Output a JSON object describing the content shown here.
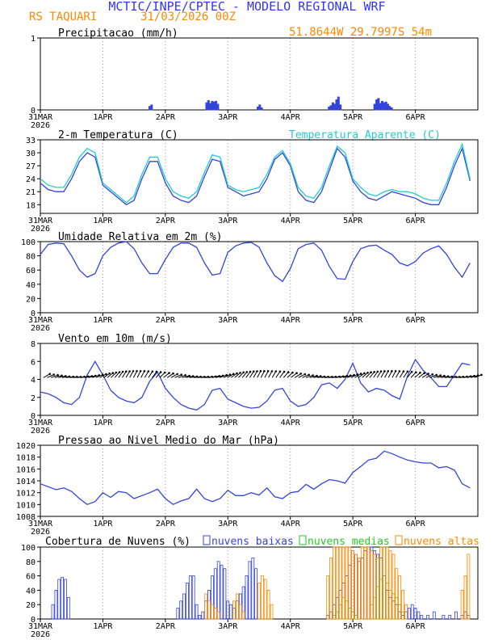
{
  "header": {
    "title": "MCTIC/INPE/CPTEC - MODELO REGIONAL WRF",
    "station": "RS TAQUARI",
    "run": "31/03/2026 00Z",
    "coords": "51.8644W 29.7997S 54m",
    "title_color": "#3333ff",
    "station_color": "#ff8800"
  },
  "x_axis": {
    "labels": [
      "31MAR",
      "1APR",
      "2APR",
      "3APR",
      "4APR",
      "5APR",
      "6APR"
    ],
    "year": "2026"
  },
  "colors": {
    "blue": "#3344dd",
    "cyan": "#22cccc",
    "green": "#22cc22",
    "orange": "#ff8800",
    "barb": "#000000"
  },
  "chart_data": [
    {
      "type": "bar",
      "title": "Precipitacao (mm/h)",
      "ylim": [
        0,
        1
      ],
      "yticks": [
        "0",
        "1"
      ],
      "series": [
        {
          "name": "precip",
          "x": [
            1.75,
            1.78,
            2.66,
            2.69,
            2.72,
            2.75,
            2.78,
            2.81,
            2.84,
            3.48,
            3.51,
            3.54,
            4.62,
            4.65,
            4.68,
            4.71,
            4.74,
            4.77,
            4.8,
            5.35,
            5.38,
            5.41,
            5.44,
            5.47,
            5.5,
            5.53,
            5.56,
            5.59,
            5.62
          ],
          "values": [
            0.05,
            0.07,
            0.1,
            0.13,
            0.09,
            0.12,
            0.11,
            0.12,
            0.08,
            0.04,
            0.07,
            0.03,
            0.04,
            0.06,
            0.1,
            0.08,
            0.14,
            0.18,
            0.07,
            0.08,
            0.14,
            0.16,
            0.09,
            0.12,
            0.1,
            0.11,
            0.08,
            0.05,
            0.03
          ]
        }
      ]
    },
    {
      "type": "line",
      "title": "2-m Temperatura (C)",
      "legend": "Temperatura Aparente (C)",
      "ylim": [
        16,
        33
      ],
      "yticks": [
        "18",
        "21",
        "24",
        "27",
        "30",
        "33"
      ],
      "series": [
        {
          "name": "Temperatura",
          "x": [
            0,
            0.125,
            0.25,
            0.375,
            0.5,
            0.625,
            0.75,
            0.875,
            1.0,
            1.125,
            1.25,
            1.375,
            1.5,
            1.625,
            1.75,
            1.875,
            2.0,
            2.125,
            2.25,
            2.375,
            2.5,
            2.625,
            2.75,
            2.875,
            3.0,
            3.125,
            3.25,
            3.375,
            3.5,
            3.625,
            3.75,
            3.875,
            4.0,
            4.125,
            4.25,
            4.375,
            4.5,
            4.625,
            4.75,
            4.875,
            5.0,
            5.125,
            5.25,
            5.375,
            5.5,
            5.625,
            5.75,
            5.875,
            6.0,
            6.125,
            6.25,
            6.375,
            6.5,
            6.625,
            6.75,
            6.875
          ],
          "values": [
            23,
            21.5,
            21,
            21,
            24,
            28,
            30,
            29,
            22.5,
            21,
            19.5,
            18,
            19,
            24,
            28,
            28,
            23,
            20,
            19,
            18.5,
            20,
            24.5,
            28.5,
            28,
            22,
            21,
            20,
            20.5,
            21,
            24,
            28.5,
            30,
            27,
            21,
            19,
            18.5,
            21,
            26,
            31,
            29,
            23.5,
            21,
            19.5,
            19,
            20,
            21,
            20.5,
            20,
            19.5,
            18.5,
            18,
            18,
            22,
            27,
            31,
            23.5
          ]
        },
        {
          "name": "Temperatura Aparente",
          "x": [
            0,
            0.125,
            0.25,
            0.375,
            0.5,
            0.625,
            0.75,
            0.875,
            1.0,
            1.125,
            1.25,
            1.375,
            1.5,
            1.625,
            1.75,
            1.875,
            2.0,
            2.125,
            2.25,
            2.375,
            2.5,
            2.625,
            2.75,
            2.875,
            3.0,
            3.125,
            3.25,
            3.375,
            3.5,
            3.625,
            3.75,
            3.875,
            4.0,
            4.125,
            4.25,
            4.375,
            4.5,
            4.625,
            4.75,
            4.875,
            5.0,
            5.125,
            5.25,
            5.375,
            5.5,
            5.625,
            5.75,
            5.875,
            6.0,
            6.125,
            6.25,
            6.375,
            6.5,
            6.625,
            6.75,
            6.875
          ],
          "values": [
            24,
            22.5,
            22,
            22,
            25,
            29,
            31,
            30,
            23,
            21.5,
            20,
            18.5,
            20,
            25,
            29,
            29,
            24,
            21,
            20,
            19.5,
            21,
            25.5,
            29.5,
            29,
            22.5,
            21.5,
            21,
            21.5,
            22,
            25,
            29,
            30.5,
            27.5,
            22,
            20,
            19.5,
            22,
            27,
            31.5,
            30,
            24,
            22,
            20.5,
            20,
            21,
            21.5,
            21,
            21,
            20.5,
            19.5,
            19,
            19,
            23,
            28,
            32,
            24
          ]
        }
      ]
    },
    {
      "type": "line",
      "title": "Umidade Relativa em 2m (%)",
      "ylim": [
        0,
        100
      ],
      "yticks": [
        "0",
        "20",
        "40",
        "60",
        "80",
        "100"
      ],
      "series": [
        {
          "name": "Umidade",
          "x": [
            0,
            0.125,
            0.25,
            0.375,
            0.5,
            0.625,
            0.75,
            0.875,
            1.0,
            1.125,
            1.25,
            1.375,
            1.5,
            1.625,
            1.75,
            1.875,
            2.0,
            2.125,
            2.25,
            2.375,
            2.5,
            2.625,
            2.75,
            2.875,
            3.0,
            3.125,
            3.25,
            3.375,
            3.5,
            3.625,
            3.75,
            3.875,
            4.0,
            4.125,
            4.25,
            4.375,
            4.5,
            4.625,
            4.75,
            4.875,
            5.0,
            5.125,
            5.25,
            5.375,
            5.5,
            5.625,
            5.75,
            5.875,
            6.0,
            6.125,
            6.25,
            6.375,
            6.5,
            6.625,
            6.75,
            6.875
          ],
          "values": [
            82,
            96,
            98,
            97,
            80,
            60,
            50,
            55,
            80,
            92,
            98,
            100,
            90,
            70,
            55,
            55,
            75,
            92,
            98,
            98,
            92,
            70,
            53,
            55,
            85,
            94,
            98,
            99,
            92,
            70,
            52,
            44,
            62,
            90,
            96,
            98,
            88,
            65,
            48,
            47,
            72,
            90,
            94,
            95,
            88,
            82,
            70,
            66,
            72,
            84,
            90,
            94,
            82,
            64,
            50,
            70
          ]
        }
      ]
    },
    {
      "type": "line",
      "title": "Vento em 10m (m/s)",
      "ylim": [
        0,
        8
      ],
      "yticks": [
        "0",
        "2",
        "4",
        "6",
        "8"
      ],
      "series": [
        {
          "name": "Vento",
          "x": [
            0,
            0.125,
            0.25,
            0.375,
            0.5,
            0.625,
            0.75,
            0.875,
            1.0,
            1.125,
            1.25,
            1.375,
            1.5,
            1.625,
            1.75,
            1.875,
            2.0,
            2.125,
            2.25,
            2.375,
            2.5,
            2.625,
            2.75,
            2.875,
            3.0,
            3.125,
            3.25,
            3.375,
            3.5,
            3.625,
            3.75,
            3.875,
            4.0,
            4.125,
            4.25,
            4.375,
            4.5,
            4.625,
            4.75,
            4.875,
            5.0,
            5.125,
            5.25,
            5.375,
            5.5,
            5.625,
            5.75,
            5.875,
            6.0,
            6.125,
            6.25,
            6.375,
            6.5,
            6.625,
            6.75,
            6.875
          ],
          "values": [
            2.6,
            2.4,
            2,
            1.4,
            1.2,
            2,
            4.5,
            6,
            4.5,
            2.8,
            2,
            1.6,
            1.4,
            2,
            3.8,
            4.8,
            3,
            2,
            1.2,
            0.8,
            0.6,
            1.2,
            2.8,
            3,
            1.8,
            1.4,
            1,
            0.8,
            0.9,
            1.6,
            2.8,
            3,
            1.6,
            1,
            1.2,
            2,
            3.4,
            3.6,
            3,
            4,
            5.8,
            3.6,
            2.6,
            3,
            2.8,
            2.2,
            1.8,
            4.4,
            6.2,
            5,
            4.2,
            3.2,
            3.2,
            4.5,
            5.8,
            5.6
          ]
        }
      ]
    },
    {
      "type": "line",
      "title": "Pressao ao Nivel Medio do Mar (hPa)",
      "ylim": [
        1008,
        1020
      ],
      "yticks": [
        "1008",
        "1010",
        "1012",
        "1014",
        "1016",
        "1018",
        "1020"
      ],
      "series": [
        {
          "name": "Pressao",
          "x": [
            0,
            0.125,
            0.25,
            0.375,
            0.5,
            0.625,
            0.75,
            0.875,
            1.0,
            1.125,
            1.25,
            1.375,
            1.5,
            1.625,
            1.75,
            1.875,
            2.0,
            2.125,
            2.25,
            2.375,
            2.5,
            2.625,
            2.75,
            2.875,
            3.0,
            3.125,
            3.25,
            3.375,
            3.5,
            3.625,
            3.75,
            3.875,
            4.0,
            4.125,
            4.25,
            4.375,
            4.5,
            4.625,
            4.75,
            4.875,
            5.0,
            5.125,
            5.25,
            5.375,
            5.5,
            5.625,
            5.75,
            5.875,
            6.0,
            6.125,
            6.25,
            6.375,
            6.5,
            6.625,
            6.75,
            6.875
          ],
          "values": [
            1013.5,
            1013,
            1012.5,
            1012.8,
            1012.2,
            1011,
            1010,
            1010.5,
            1012,
            1011.2,
            1012.2,
            1012,
            1011,
            1011.5,
            1012,
            1012.6,
            1011,
            1010,
            1010.6,
            1011,
            1012.6,
            1011,
            1010.5,
            1011,
            1012.4,
            1011.5,
            1011.5,
            1012,
            1011.6,
            1012.8,
            1011.3,
            1011,
            1012,
            1012.2,
            1013.4,
            1012.6,
            1013.5,
            1014.2,
            1014,
            1013.6,
            1015.4,
            1016.4,
            1017.5,
            1017.8,
            1019,
            1018.6,
            1018,
            1017.5,
            1017.2,
            1017,
            1017,
            1016.2,
            1016.4,
            1015.8,
            1013.5,
            1012.8
          ]
        }
      ]
    },
    {
      "type": "bar",
      "title": "Cobertura de Nuvens (%)",
      "ylim": [
        0,
        100
      ],
      "yticks": [
        "0",
        "20",
        "40",
        "60",
        "80",
        "100"
      ],
      "legend": [
        "nuvens baixas",
        "nuvens medias",
        "nuvens altas"
      ],
      "series": [
        {
          "name": "nuvens baixas",
          "x": [
            0.2,
            0.25,
            0.3,
            0.35,
            0.4,
            0.45,
            2.2,
            2.25,
            2.3,
            2.35,
            2.4,
            2.45,
            2.5,
            2.55,
            2.6,
            2.65,
            2.7,
            2.75,
            2.8,
            2.85,
            2.9,
            2.95,
            3.0,
            3.05,
            3.1,
            3.15,
            3.2,
            3.25,
            3.3,
            3.35,
            3.4,
            3.45,
            4.6,
            4.65,
            4.7,
            4.75,
            4.8,
            4.85,
            4.9,
            4.95,
            5.0,
            5.05,
            5.1,
            5.15,
            5.2,
            5.25,
            5.3,
            5.35,
            5.4,
            5.45,
            5.5,
            5.55,
            5.6,
            5.65,
            5.7,
            5.75,
            5.8,
            5.85,
            5.9,
            5.95,
            6.0,
            6.05,
            6.1,
            6.2,
            6.3,
            6.45,
            6.55,
            6.65,
            6.75,
            6.8,
            6.85
          ],
          "values": [
            20,
            40,
            55,
            58,
            55,
            30,
            15,
            25,
            35,
            50,
            60,
            60,
            20,
            5,
            10,
            25,
            40,
            60,
            70,
            80,
            75,
            70,
            25,
            20,
            15,
            25,
            35,
            45,
            60,
            80,
            85,
            70,
            5,
            10,
            20,
            30,
            40,
            50,
            60,
            75,
            95,
            90,
            80,
            85,
            95,
            100,
            100,
            95,
            90,
            85,
            60,
            40,
            30,
            25,
            20,
            10,
            5,
            10,
            15,
            20,
            15,
            10,
            5,
            5,
            10,
            5,
            5,
            10,
            5,
            10,
            5
          ]
        },
        {
          "name": "nuvens medias",
          "x": [
            4.7,
            4.75,
            4.8,
            4.85,
            4.9,
            4.95,
            5.0,
            5.05,
            5.3,
            5.35,
            5.4,
            5.45,
            5.5,
            5.55,
            5.6,
            5.65,
            5.7,
            5.75,
            5.8
          ],
          "values": [
            5,
            10,
            20,
            30,
            25,
            15,
            10,
            5,
            20,
            30,
            45,
            55,
            60,
            50,
            40,
            35,
            30,
            20,
            10
          ]
        },
        {
          "name": "nuvens altas",
          "x": [
            2.65,
            2.7,
            2.75,
            2.8,
            2.85,
            3.1,
            3.15,
            3.2,
            3.25,
            3.5,
            3.55,
            3.6,
            3.65,
            3.7,
            4.6,
            4.65,
            4.7,
            4.75,
            4.8,
            4.85,
            4.9,
            4.95,
            5.0,
            5.05,
            5.1,
            5.15,
            5.2,
            5.25,
            5.3,
            5.35,
            5.4,
            5.45,
            5.5,
            5.55,
            5.6,
            5.65,
            5.7,
            5.75,
            5.8,
            5.85,
            6.75,
            6.8,
            6.85
          ],
          "values": [
            35,
            25,
            20,
            15,
            10,
            25,
            35,
            20,
            10,
            50,
            60,
            55,
            40,
            20,
            60,
            85,
            100,
            100,
            100,
            100,
            100,
            100,
            95,
            90,
            85,
            100,
            100,
            100,
            95,
            90,
            85,
            100,
            100,
            100,
            95,
            90,
            70,
            60,
            40,
            20,
            40,
            60,
            90
          ]
        }
      ]
    }
  ]
}
